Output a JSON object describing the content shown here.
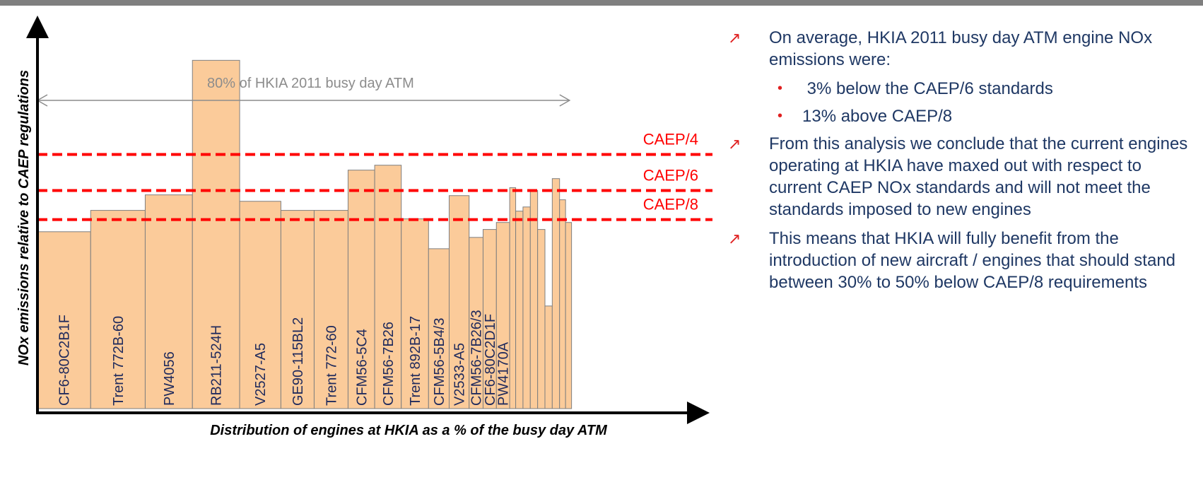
{
  "chart_data": {
    "type": "bar",
    "y_label": "NOx emissions relative to CAEP regulations",
    "x_label": "Distribution of engines at HKIA as a % of the busy day ATM",
    "categories": [
      "CF6-80C2B1F",
      "Trent 772B-60",
      "PW4056",
      "RB211-524H",
      "V2527-A5",
      "GE90-115BL2",
      "Trent 772-60",
      "CFM56-5C4",
      "CFM56-7B26",
      "Trent 892B-17",
      "CFM56-5B4/3",
      "V2533-A5",
      "CFM56-7B26/3",
      "CF6-80C2D1F",
      "PW4170A",
      null,
      null,
      null,
      null,
      null,
      null,
      null,
      null,
      null
    ],
    "widths": [
      8.0,
      8.2,
      7.1,
      7.1,
      6.2,
      5.0,
      5.1,
      4.0,
      4.0,
      4.1,
      3.1,
      3.0,
      2.1,
      2.0,
      2.0,
      0.9,
      1.1,
      1.1,
      1.1,
      1.1,
      1.1,
      1.1,
      0.9,
      0.9
    ],
    "values": [
      93.6,
      104.9,
      113.1,
      184.3,
      109.7,
      104.9,
      104.9,
      126.2,
      128.8,
      100.4,
      84.6,
      112.7,
      90.6,
      94.8,
      98.5,
      116.9,
      104.5,
      106.7,
      115.4,
      94.8,
      54.3,
      121.7,
      110.5,
      98.5
    ],
    "color": "#fbcb9a",
    "xlim": [
      0,
      100
    ],
    "ylim": [
      0,
      205
    ],
    "reference_lines": [
      {
        "label": "CAEP/4",
        "value": 134.5,
        "color": "#ff0000"
      },
      {
        "label": "CAEP/6",
        "value": 115.4,
        "color": "#ff0000"
      },
      {
        "label": "CAEP/8",
        "value": 100.0,
        "color": "#ff0000"
      }
    ],
    "annotation": {
      "label": "80% of HKIA 2011 busy day ATM",
      "value": 80
    }
  },
  "text_panel": {
    "bullets": [
      {
        "text": "On average, HKIA 2011 busy day ATM engine NOx emissions were:",
        "sub": [
          " 3% below the CAEP/6 standards",
          "13% above CAEP/8"
        ]
      },
      {
        "text": "From this analysis we conclude that the current engines operating at HKIA  have maxed out with respect to current CAEP NOx standards and will not meet the standards imposed to new engines",
        "sub": []
      },
      {
        "text": "This means that HKIA will fully benefit from the introduction of new aircraft / engines that should stand between 30% to 50% below CAEP/8 requirements",
        "sub": []
      }
    ]
  }
}
